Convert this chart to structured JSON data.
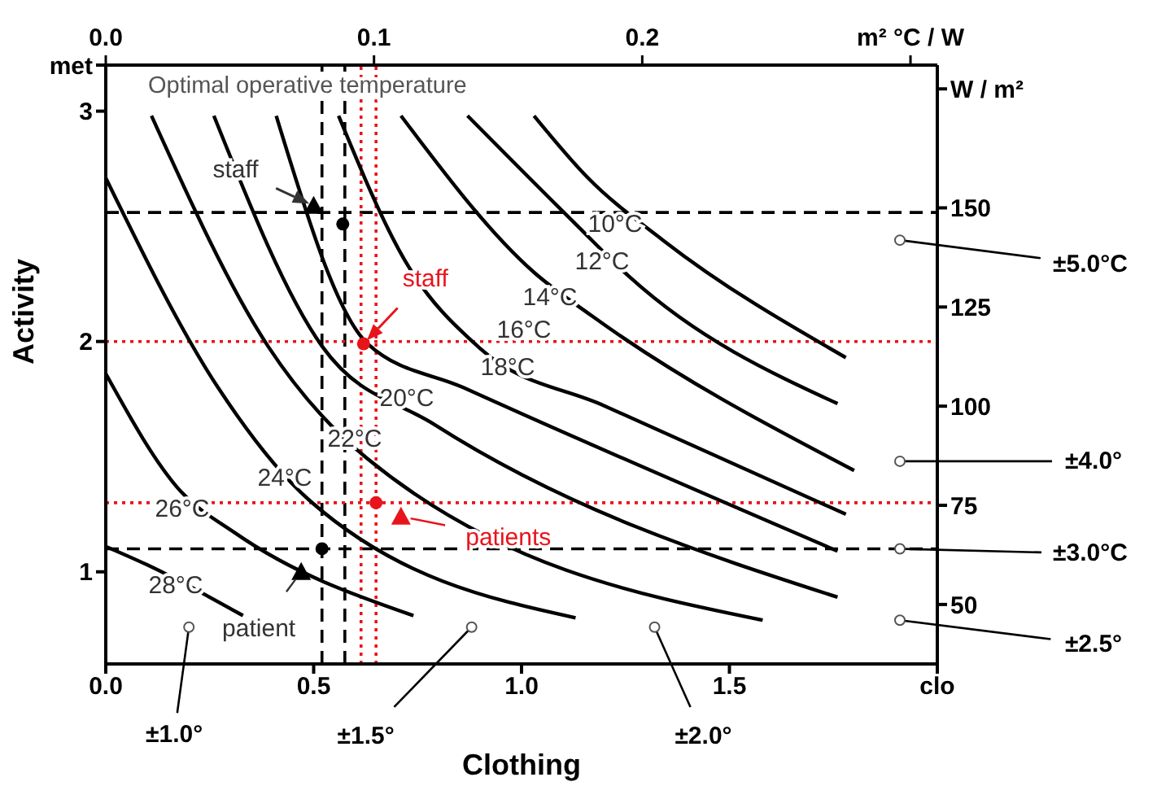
{
  "chart_data": {
    "type": "line",
    "title": "Optimal operative temperature",
    "xlabel": "Clothing",
    "ylabel": "Activity",
    "xlim": [
      0,
      2
    ],
    "xticks": [
      {
        "value": 0,
        "label": "0.0"
      },
      {
        "value": 0.5,
        "label": "0.5"
      },
      {
        "value": 1,
        "label": "1.0"
      },
      {
        "value": 1.5,
        "label": "1.5"
      },
      {
        "value": 2,
        "label": "clo"
      }
    ],
    "x2lim": [
      0,
      0.31
    ],
    "x2ticks": [
      {
        "value": 0,
        "label": "0.0"
      },
      0.1,
      0.2,
      {
        "value": 0.3,
        "label": "m² °C / W"
      }
    ],
    "ylim": [
      0.6,
      3.2
    ],
    "yticks": [
      1,
      2,
      3,
      {
        "value": 3.2,
        "label": "met"
      }
    ],
    "y2lim": [
      35,
      186
    ],
    "y2ticks": [
      50,
      75,
      100,
      125,
      150,
      {
        "value": 180,
        "label": "W / m²"
      }
    ],
    "grid": false,
    "marker": "none",
    "line_style": "solid",
    "series": [
      {
        "color": "#000000",
        "x": [
          1.03,
          1.16,
          1.34,
          1.78
        ],
        "values": [
          2.98,
          2.71,
          2.44,
          1.93
        ]
      },
      {
        "color": "#000000",
        "x": [
          0.87,
          1.13,
          1.26,
          1.76
        ],
        "values": [
          2.98,
          2.51,
          2.28,
          1.73
        ]
      },
      {
        "color": "#000000",
        "x": [
          0.71,
          1.03,
          1.17,
          1.8
        ],
        "values": [
          2.98,
          2.3,
          2.11,
          1.44
        ]
      },
      {
        "color": "#000000",
        "x": [
          0.56,
          0.72,
          0.9,
          1.2,
          1.78
        ],
        "values": [
          2.98,
          2.35,
          1.97,
          1.72,
          1.25
        ]
      },
      {
        "color": "#000000",
        "x": [
          0.41,
          0.63,
          0.86,
          1.76
        ],
        "values": [
          2.98,
          1.99,
          1.8,
          1.09
        ]
      },
      {
        "color": "#000000",
        "x": [
          0.26,
          0.52,
          0.79,
          1.76
        ],
        "values": [
          2.98,
          1.98,
          1.64,
          0.89
        ]
      },
      {
        "color": "#000000",
        "x": [
          0.11,
          0.39,
          0.63,
          1.58
        ],
        "values": [
          2.98,
          1.98,
          1.49,
          0.79
        ]
      },
      {
        "color": "#000000",
        "x": [
          0,
          0.27,
          0.49,
          1.13
        ],
        "values": [
          2.71,
          1.8,
          1.31,
          0.8
        ]
      },
      {
        "color": "#000000",
        "x": [
          0,
          0.18,
          0.31,
          0.74
        ],
        "values": [
          1.86,
          1.35,
          1.17,
          0.81
        ]
      },
      {
        "color": "#000000",
        "x": [
          0,
          0.1,
          0.33
        ],
        "values": [
          1.11,
          1.03,
          0.81
        ]
      },
      {
        "type": "scatter",
        "marker": "triangle",
        "color": "#000000",
        "x": [
          0.5,
          0.47
        ],
        "values": [
          2.59,
          1.0
        ]
      },
      {
        "type": "scatter",
        "marker": "circle",
        "color": "#000000",
        "x": [
          0.57,
          0.52
        ],
        "values": [
          2.51,
          1.1
        ]
      },
      {
        "type": "scatter",
        "marker": "circle",
        "color": "#e8141c",
        "x": [
          0.62,
          0.65
        ],
        "values": [
          1.99,
          1.3
        ]
      },
      {
        "type": "scatter",
        "marker": "triangle",
        "color": "#e8141c",
        "x": [
          0.71
        ],
        "values": [
          1.24
        ]
      }
    ],
    "ref_lines": [
      {
        "axis": "y",
        "value": 2.56,
        "color": "#000000",
        "line_style": "dashed"
      },
      {
        "axis": "y",
        "value": 1.1,
        "color": "#000000",
        "line_style": "dashed"
      },
      {
        "axis": "x",
        "value": 0.52,
        "color": "#000000",
        "line_style": "dashed"
      },
      {
        "axis": "x",
        "value": 0.575,
        "color": "#000000",
        "line_style": "dashed"
      },
      {
        "axis": "y",
        "value": 2.0,
        "color": "#e8141c",
        "line_style": "dotted"
      },
      {
        "axis": "y",
        "value": 1.3,
        "color": "#e8141c",
        "line_style": "dotted"
      },
      {
        "axis": "x",
        "value": 0.614,
        "color": "#e8141c",
        "line_style": "dotted"
      },
      {
        "axis": "x",
        "value": 0.65,
        "color": "#e8141c",
        "line_style": "dotted"
      }
    ],
    "annotations": [
      {
        "text": "staff",
        "x": 0.5,
        "y": 2.59
      },
      {
        "text": "staff",
        "x": 0.62,
        "y": 1.99
      },
      {
        "text": "patients",
        "x": 0.71,
        "y": 1.24
      },
      {
        "text": "patient",
        "x": 0.47,
        "y": 1.0
      },
      {
        "text": "±5.0°C",
        "x": 1.91,
        "y": 2.44
      },
      {
        "text": "±4.0°",
        "x": 1.91,
        "y": 1.48
      },
      {
        "text": "±3.0°C",
        "x": 1.91,
        "y": 1.1
      },
      {
        "text": "±2.5°",
        "x": 1.91,
        "y": 0.79
      },
      {
        "text": "±1.0°",
        "x": 0.2,
        "y": 0.76
      },
      {
        "text": "±1.5°",
        "x": 0.88,
        "y": 0.76
      },
      {
        "text": "±2.0°",
        "x": 1.32,
        "y": 0.76
      },
      "10°C",
      "12°C",
      "14°C",
      "16°C",
      "18°C",
      "20°C",
      "22°C",
      "24°C",
      "26°C",
      "28°C"
    ]
  }
}
